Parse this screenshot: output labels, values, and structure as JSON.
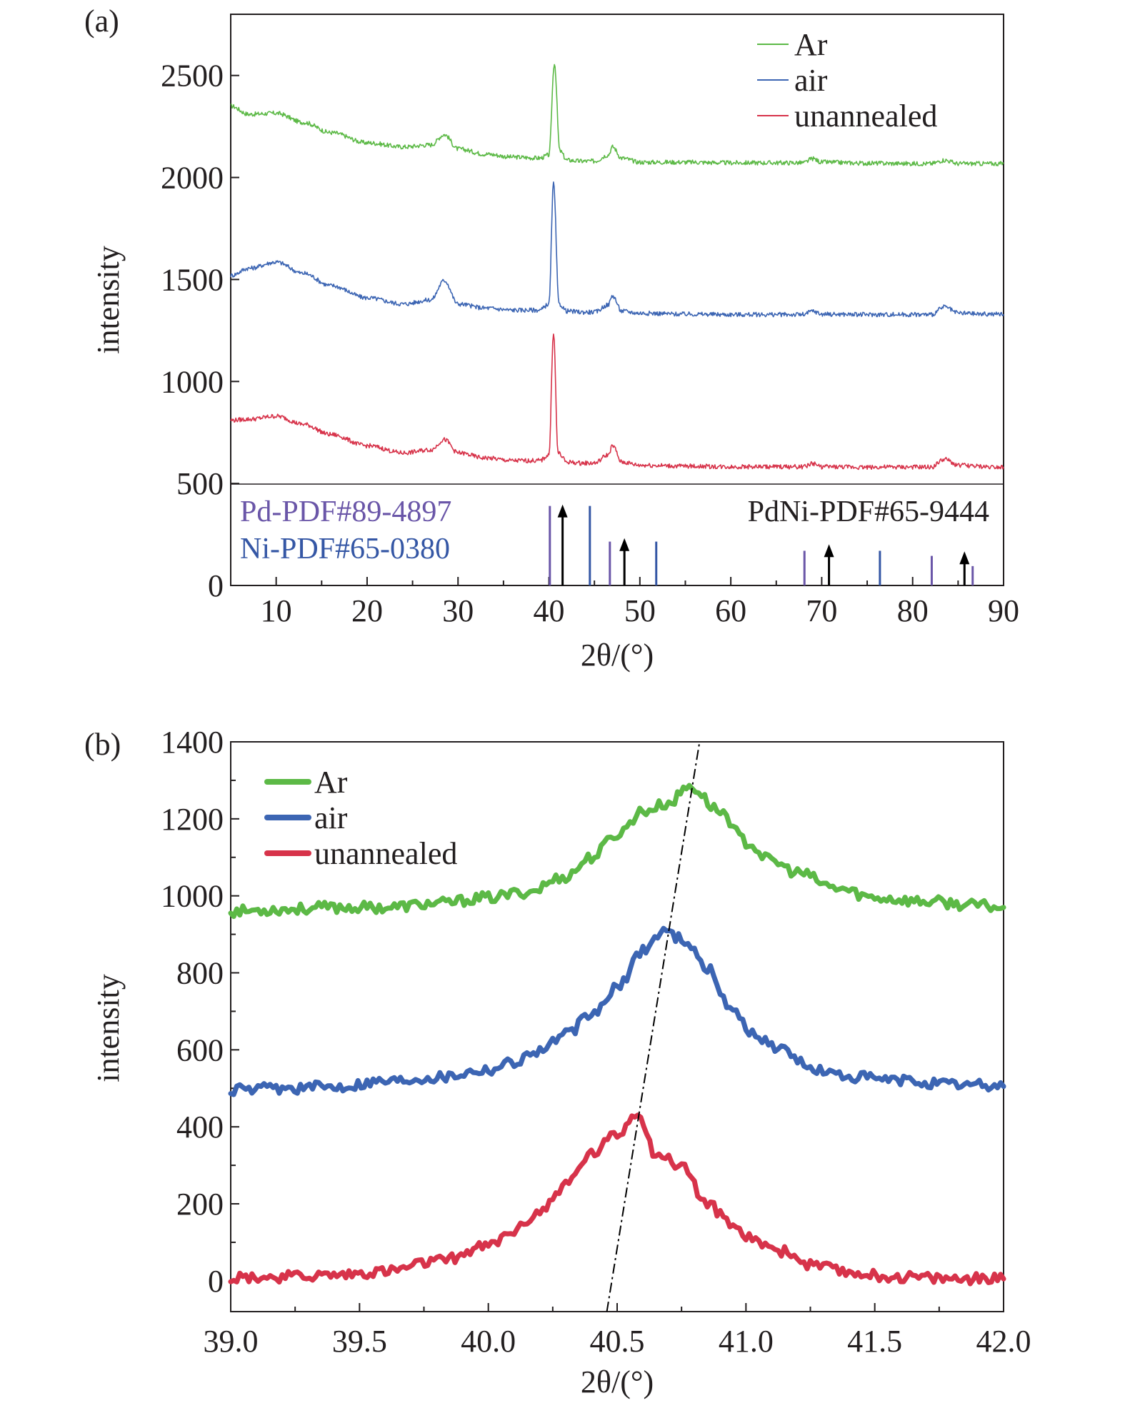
{
  "colors": {
    "Ar": "#5cb946",
    "air": "#3c65b3",
    "unannealed": "#d7334a",
    "Pd_ref": "#6a56a8",
    "Ni_ref": "#3557a5",
    "PdNi_ref": "#000000",
    "axis": "#231f20"
  },
  "chart_data": [
    {
      "panel": "(a)",
      "type": "line",
      "xlabel": "2θ/(°)",
      "ylabel": "intensity",
      "xlim": [
        5,
        90
      ],
      "ylim": [
        0,
        2800
      ],
      "x_ticks": [
        10,
        20,
        30,
        40,
        50,
        60,
        70,
        80,
        90
      ],
      "y_ticks": [
        0,
        500,
        1000,
        1500,
        2000,
        2500
      ],
      "legend_position": "top-right",
      "series": [
        {
          "name": "Ar",
          "x": [
            5,
            7,
            10,
            13,
            16,
            20,
            24,
            27,
            28.5,
            30,
            33,
            36,
            39,
            40,
            40.6,
            41.2,
            42,
            43.5,
            45,
            46.5,
            47,
            48,
            50,
            55,
            60,
            65,
            68,
            69,
            70,
            75,
            80,
            82,
            83.5,
            85,
            88,
            90
          ],
          "y": [
            2350,
            2310,
            2315,
            2270,
            2220,
            2170,
            2150,
            2160,
            2210,
            2140,
            2115,
            2100,
            2095,
            2110,
            2560,
            2130,
            2085,
            2080,
            2080,
            2110,
            2150,
            2095,
            2075,
            2075,
            2072,
            2072,
            2072,
            2092,
            2075,
            2070,
            2068,
            2068,
            2085,
            2068,
            2068,
            2068
          ]
        },
        {
          "name": "air",
          "x": [
            5,
            7,
            10,
            13,
            16,
            20,
            24,
            27,
            28.5,
            30,
            33,
            36,
            39,
            40,
            40.5,
            41.1,
            42,
            43.5,
            45,
            46.5,
            47,
            48,
            50,
            55,
            60,
            65,
            68,
            69,
            70,
            75,
            80,
            82,
            83.5,
            85,
            88,
            90
          ],
          "y": [
            1520,
            1555,
            1585,
            1530,
            1470,
            1410,
            1380,
            1400,
            1495,
            1380,
            1360,
            1350,
            1350,
            1380,
            1970,
            1380,
            1345,
            1340,
            1340,
            1375,
            1420,
            1345,
            1335,
            1330,
            1328,
            1328,
            1328,
            1345,
            1330,
            1328,
            1328,
            1328,
            1365,
            1335,
            1330,
            1330
          ]
        },
        {
          "name": "unannealed",
          "x": [
            5,
            7,
            10,
            13,
            16,
            20,
            24,
            27,
            28.5,
            30,
            33,
            36,
            39,
            40,
            40.5,
            41.0,
            42,
            43.5,
            45,
            46.5,
            47,
            48,
            50,
            55,
            60,
            65,
            68,
            69,
            70,
            75,
            80,
            82,
            83.5,
            85,
            88,
            90
          ],
          "y": [
            810,
            815,
            830,
            790,
            740,
            685,
            650,
            665,
            715,
            650,
            625,
            612,
            612,
            640,
            1240,
            650,
            605,
            600,
            600,
            640,
            685,
            605,
            590,
            585,
            582,
            582,
            582,
            598,
            582,
            580,
            580,
            580,
            618,
            590,
            582,
            582
          ]
        }
      ],
      "reference_patterns": [
        {
          "name": "Pd-PDF#89-4897",
          "style": "bar",
          "peaks": [
            {
              "x": 40.1,
              "height": 390
            },
            {
              "x": 46.7,
              "height": 215
            },
            {
              "x": 68.1,
              "height": 170
            },
            {
              "x": 82.1,
              "height": 145
            },
            {
              "x": 86.6,
              "height": 95
            }
          ]
        },
        {
          "name": "Ni-PDF#65-0380",
          "style": "bar",
          "peaks": [
            {
              "x": 44.5,
              "height": 390
            },
            {
              "x": 51.8,
              "height": 215
            },
            {
              "x": 76.4,
              "height": 170
            }
          ]
        },
        {
          "name": "PdNi-PDF#65-9444",
          "style": "arrow",
          "peaks": [
            {
              "x": 41.5,
              "height": 390
            },
            {
              "x": 48.3,
              "height": 225
            },
            {
              "x": 70.8,
              "height": 195
            },
            {
              "x": 85.7,
              "height": 160
            }
          ]
        }
      ]
    },
    {
      "panel": "(b)",
      "type": "line",
      "xlabel": "2θ/(°)",
      "ylabel": "intensity",
      "xlim": [
        39.0,
        42.0
      ],
      "ylim": [
        -80,
        1400
      ],
      "x_ticks": [
        "39.0",
        "39.5",
        "40.0",
        "40.5",
        "41.0",
        "41.5",
        "42.0"
      ],
      "y_ticks": [
        0,
        200,
        400,
        600,
        800,
        1000,
        1200,
        1400
      ],
      "legend_position": "top-left",
      "series": [
        {
          "name": "Ar",
          "x": [
            39.0,
            39.2,
            39.4,
            39.6,
            39.8,
            40.0,
            40.15,
            40.3,
            40.4,
            40.5,
            40.6,
            40.7,
            40.78,
            40.9,
            41.0,
            41.1,
            41.2,
            41.35,
            41.5,
            41.7,
            41.9,
            42.0
          ],
          "y": [
            960,
            965,
            970,
            970,
            980,
            995,
            1010,
            1050,
            1100,
            1160,
            1220,
            1240,
            1285,
            1220,
            1140,
            1090,
            1060,
            1020,
            995,
            985,
            975,
            970
          ]
        },
        {
          "name": "air",
          "x": [
            39.0,
            39.2,
            39.4,
            39.6,
            39.8,
            40.0,
            40.1,
            40.2,
            40.3,
            40.4,
            40.5,
            40.6,
            40.68,
            40.75,
            40.85,
            40.95,
            41.05,
            41.15,
            41.25,
            41.4,
            41.6,
            41.8,
            42.0
          ],
          "y": [
            495,
            500,
            505,
            520,
            530,
            550,
            570,
            600,
            640,
            690,
            760,
            860,
            910,
            890,
            810,
            700,
            630,
            600,
            550,
            530,
            520,
            510,
            505
          ]
        },
        {
          "name": "unannealed",
          "x": [
            39.0,
            39.2,
            39.4,
            39.6,
            39.8,
            40.0,
            40.1,
            40.2,
            40.3,
            40.4,
            40.5,
            40.58,
            40.65,
            40.75,
            40.85,
            40.95,
            41.05,
            41.15,
            41.25,
            41.4,
            41.6,
            41.8,
            42.0
          ],
          "y": [
            10,
            10,
            15,
            25,
            50,
            90,
            130,
            180,
            250,
            330,
            380,
            440,
            330,
            300,
            200,
            140,
            100,
            75,
            40,
            20,
            10,
            5,
            5
          ]
        }
      ],
      "shift_line": {
        "style": "dash-dot",
        "x1": 40.46,
        "y1": -80,
        "x2": 40.82,
        "y2": 1400
      }
    }
  ],
  "legend": {
    "items": [
      {
        "key": "Ar",
        "label": "Ar"
      },
      {
        "key": "air",
        "label": "air"
      },
      {
        "key": "unannealed",
        "label": "unannealed"
      }
    ]
  }
}
